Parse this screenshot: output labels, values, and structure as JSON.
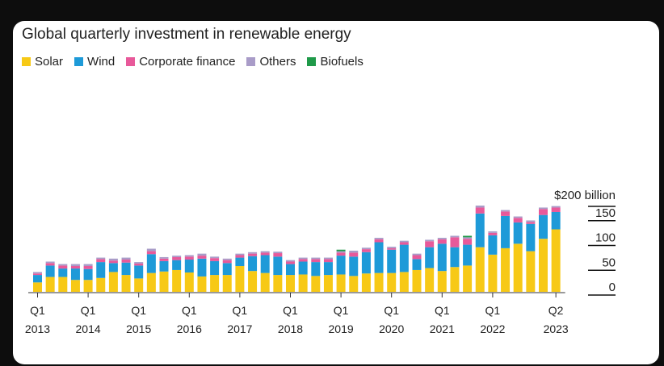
{
  "chart_data": {
    "type": "bar",
    "stacked": true,
    "title": "Global quarterly investment in renewable energy",
    "ylim": [
      0,
      200
    ],
    "y_ticks": [
      {
        "value": 200,
        "label": "$200 billion"
      },
      {
        "value": 150,
        "label": "150"
      },
      {
        "value": 100,
        "label": "100"
      },
      {
        "value": 50,
        "label": "50"
      },
      {
        "value": 0,
        "label": "0"
      }
    ],
    "x_labels": [
      {
        "index": 0,
        "quarter": "Q1",
        "year": "2013"
      },
      {
        "index": 4,
        "quarter": "Q1",
        "year": "2014"
      },
      {
        "index": 8,
        "quarter": "Q1",
        "year": "2015"
      },
      {
        "index": 12,
        "quarter": "Q1",
        "year": "2016"
      },
      {
        "index": 16,
        "quarter": "Q1",
        "year": "2017"
      },
      {
        "index": 20,
        "quarter": "Q1",
        "year": "2018"
      },
      {
        "index": 24,
        "quarter": "Q1",
        "year": "2019"
      },
      {
        "index": 28,
        "quarter": "Q1",
        "year": "2020"
      },
      {
        "index": 32,
        "quarter": "Q1",
        "year": "2021"
      },
      {
        "index": 36,
        "quarter": "Q1",
        "year": "2022"
      },
      {
        "index": 41,
        "quarter": "Q2",
        "year": "2023"
      }
    ],
    "categories": [
      "Q1 2013",
      "Q2 2013",
      "Q3 2013",
      "Q4 2013",
      "Q1 2014",
      "Q2 2014",
      "Q3 2014",
      "Q4 2014",
      "Q1 2015",
      "Q2 2015",
      "Q3 2015",
      "Q4 2015",
      "Q1 2016",
      "Q2 2016",
      "Q3 2016",
      "Q4 2016",
      "Q1 2017",
      "Q2 2017",
      "Q3 2017",
      "Q4 2017",
      "Q1 2018",
      "Q2 2018",
      "Q3 2018",
      "Q4 2018",
      "Q1 2019",
      "Q2 2019",
      "Q3 2019",
      "Q4 2019",
      "Q1 2020",
      "Q2 2020",
      "Q3 2020",
      "Q4 2020",
      "Q1 2021",
      "Q2 2021",
      "Q3 2021",
      "Q4 2021",
      "Q1 2022",
      "Q2 2022",
      "Q3 2022",
      "Q4 2022",
      "Q1 2023",
      "Q2 2023"
    ],
    "series": [
      {
        "name": "Solar",
        "color": "#f7c916",
        "values": [
          19,
          30,
          30,
          24,
          24,
          28,
          40,
          34,
          27,
          38,
          41,
          44,
          39,
          31,
          34,
          34,
          52,
          42,
          38,
          34,
          34,
          35,
          32,
          34,
          35,
          32,
          37,
          38,
          38,
          40,
          44,
          48,
          42,
          50,
          53,
          90,
          75,
          88,
          97,
          82,
          107,
          126
        ]
      },
      {
        "name": "Wind",
        "color": "#1e9ad8",
        "values": [
          15,
          23,
          17,
          23,
          22,
          32,
          18,
          25,
          26,
          38,
          21,
          20,
          26,
          36,
          28,
          24,
          17,
          30,
          36,
          37,
          22,
          26,
          28,
          26,
          38,
          39,
          43,
          62,
          47,
          55,
          22,
          42,
          55,
          40,
          42,
          68,
          39,
          65,
          43,
          55,
          48,
          35
        ]
      },
      {
        "name": "Corporate finance",
        "color": "#e8599a",
        "values": [
          3,
          5,
          6,
          5,
          6,
          6,
          5,
          6,
          4,
          6,
          5,
          6,
          6,
          6,
          6,
          6,
          5,
          5,
          5,
          7,
          5,
          5,
          6,
          6,
          6,
          8,
          6,
          6,
          3,
          5,
          8,
          12,
          9,
          20,
          12,
          12,
          5,
          9,
          9,
          4,
          12,
          9
        ]
      },
      {
        "name": "Others",
        "color": "#a99cc8",
        "values": [
          3,
          3,
          3,
          4,
          4,
          3,
          4,
          4,
          3,
          5,
          3,
          3,
          3,
          4,
          3,
          3,
          3,
          3,
          3,
          3,
          3,
          3,
          3,
          3,
          3,
          4,
          3,
          3,
          3,
          3,
          3,
          3,
          3,
          3,
          3,
          4,
          3,
          3,
          3,
          3,
          3,
          3
        ]
      },
      {
        "name": "Biofuels",
        "color": "#1f9a49",
        "values": [
          0,
          0,
          0,
          0,
          0,
          0,
          0,
          0,
          0,
          0,
          0,
          0,
          0,
          0,
          0,
          0,
          0,
          0,
          0,
          0,
          0,
          0,
          0,
          0,
          3,
          0,
          0,
          0,
          0,
          0,
          0,
          0,
          0,
          0,
          3,
          0,
          0,
          0,
          0,
          0,
          0,
          0
        ]
      }
    ]
  }
}
